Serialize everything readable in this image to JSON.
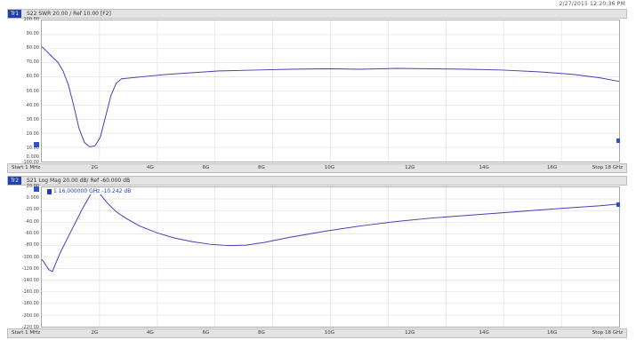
{
  "timestamp": "2/27/2015 12:20:36 PM",
  "top_trace": {
    "label": "Tr1",
    "params": [
      "S22 SWR 20.00 / Ref 10.00 [F2]"
    ],
    "y_labels": [
      "100.00",
      "90.00",
      "80.00",
      "70.00",
      "60.00",
      "50.00",
      "40.00",
      "30.00",
      "20.00",
      "10.00",
      "0.000",
      "-100.00"
    ],
    "freq_labels": {
      "start": "Start 1 MHz",
      "stop": "Stop 18 GHz",
      "mid": [
        "2G",
        "4G",
        "6G",
        "8G",
        "10G",
        "12G",
        "14G",
        "16G"
      ]
    },
    "trace_color": "#4040b8"
  },
  "bottom_trace": {
    "label": "Tr2",
    "params": [
      "S21 Log Mag 20.00 dB/ Ref -60.000 dB"
    ],
    "marker_label": "1",
    "marker_text": "16.000000 GHz  -10.242 dB",
    "y_labels": [
      "20.00",
      "0.000",
      "-20.00",
      "-40.00",
      "-60.00",
      "-80.00",
      "-100.00",
      "-120.00",
      "-140.00",
      "-160.00",
      "-180.00",
      "-200.00",
      "-220.00"
    ],
    "freq_labels": {
      "start": "Start 1 MHz",
      "stop": "Stop 18 GHz",
      "mid": [
        "2G",
        "4G",
        "6G",
        "8G",
        "10G",
        "12G",
        "14G",
        "16G"
      ]
    },
    "trace_color": "#4040b8"
  },
  "colors": {
    "panel_bg": "#ffffff",
    "bar_bg": "#e3e3e3",
    "accent": "#1f3fb3",
    "grid": "#d9d9d9"
  }
}
